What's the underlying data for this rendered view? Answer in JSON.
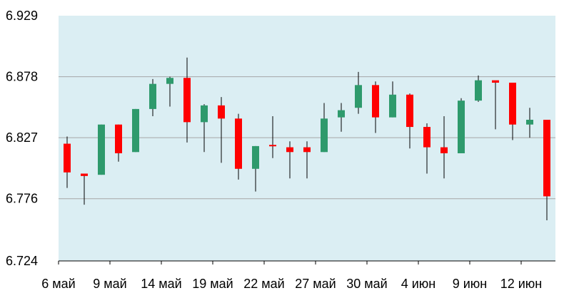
{
  "chart_data": {
    "type": "candlestick",
    "title": "",
    "xlabel": "",
    "ylabel": "",
    "ylim": [
      6.724,
      6.929
    ],
    "y_ticks": [
      "6.929",
      "6.878",
      "6.827",
      "6.776",
      "6.724"
    ],
    "x_tick_labels": [
      {
        "label": "6 май",
        "index": 0
      },
      {
        "label": "9 май",
        "index": 3
      },
      {
        "label": "14 май",
        "index": 6
      },
      {
        "label": "19 май",
        "index": 9
      },
      {
        "label": "22 май",
        "index": 12
      },
      {
        "label": "27 май",
        "index": 15
      },
      {
        "label": "30 май",
        "index": 18
      },
      {
        "label": "4 июн",
        "index": 21
      },
      {
        "label": "9 июн",
        "index": 24
      },
      {
        "label": "12 июн",
        "index": 27
      }
    ],
    "grid": true,
    "colors": {
      "up": "#2e9a6c",
      "down": "#ff0000",
      "background": "#dbeef3",
      "grid": "#a6a6a6",
      "wick": "#000000"
    },
    "candles": [
      {
        "open": 6.822,
        "high": 6.828,
        "low": 6.785,
        "close": 6.798
      },
      {
        "open": 6.797,
        "high": 6.796,
        "low": 6.771,
        "close": 6.795
      },
      {
        "open": 6.796,
        "high": 6.838,
        "low": 6.796,
        "close": 6.838
      },
      {
        "open": 6.838,
        "high": 6.838,
        "low": 6.807,
        "close": 6.814
      },
      {
        "open": 6.815,
        "high": 6.851,
        "low": 6.815,
        "close": 6.851
      },
      {
        "open": 6.851,
        "high": 6.876,
        "low": 6.845,
        "close": 6.872
      },
      {
        "open": 6.872,
        "high": 6.878,
        "low": 6.853,
        "close": 6.877
      },
      {
        "open": 6.877,
        "high": 6.894,
        "low": 6.823,
        "close": 6.84
      },
      {
        "open": 6.84,
        "high": 6.855,
        "low": 6.815,
        "close": 6.854
      },
      {
        "open": 6.854,
        "high": 6.861,
        "low": 6.806,
        "close": 6.843
      },
      {
        "open": 6.843,
        "high": 6.847,
        "low": 6.792,
        "close": 6.801
      },
      {
        "open": 6.801,
        "high": 6.82,
        "low": 6.782,
        "close": 6.82
      },
      {
        "open": 6.821,
        "high": 6.845,
        "low": 6.81,
        "close": 6.82
      },
      {
        "open": 6.819,
        "high": 6.824,
        "low": 6.793,
        "close": 6.815
      },
      {
        "open": 6.819,
        "high": 6.824,
        "low": 6.793,
        "close": 6.815
      },
      {
        "open": 6.815,
        "high": 6.856,
        "low": 6.815,
        "close": 6.843
      },
      {
        "open": 6.844,
        "high": 6.856,
        "low": 6.832,
        "close": 6.85
      },
      {
        "open": 6.852,
        "high": 6.882,
        "low": 6.847,
        "close": 6.871
      },
      {
        "open": 6.871,
        "high": 6.874,
        "low": 6.831,
        "close": 6.844
      },
      {
        "open": 6.844,
        "high": 6.874,
        "low": 6.844,
        "close": 6.863
      },
      {
        "open": 6.863,
        "high": 6.864,
        "low": 6.818,
        "close": 6.836
      },
      {
        "open": 6.836,
        "high": 6.839,
        "low": 6.797,
        "close": 6.819
      },
      {
        "open": 6.819,
        "high": 6.845,
        "low": 6.793,
        "close": 6.814
      },
      {
        "open": 6.814,
        "high": 6.86,
        "low": 6.814,
        "close": 6.858
      },
      {
        "open": 6.858,
        "high": 6.879,
        "low": 6.857,
        "close": 6.875
      },
      {
        "open": 6.875,
        "high": 6.874,
        "low": 6.834,
        "close": 6.873
      },
      {
        "open": 6.873,
        "high": 6.873,
        "low": 6.825,
        "close": 6.838
      },
      {
        "open": 6.838,
        "high": 6.852,
        "low": 6.827,
        "close": 6.842
      },
      {
        "open": 6.842,
        "high": 6.842,
        "low": 6.758,
        "close": 6.778
      }
    ]
  }
}
